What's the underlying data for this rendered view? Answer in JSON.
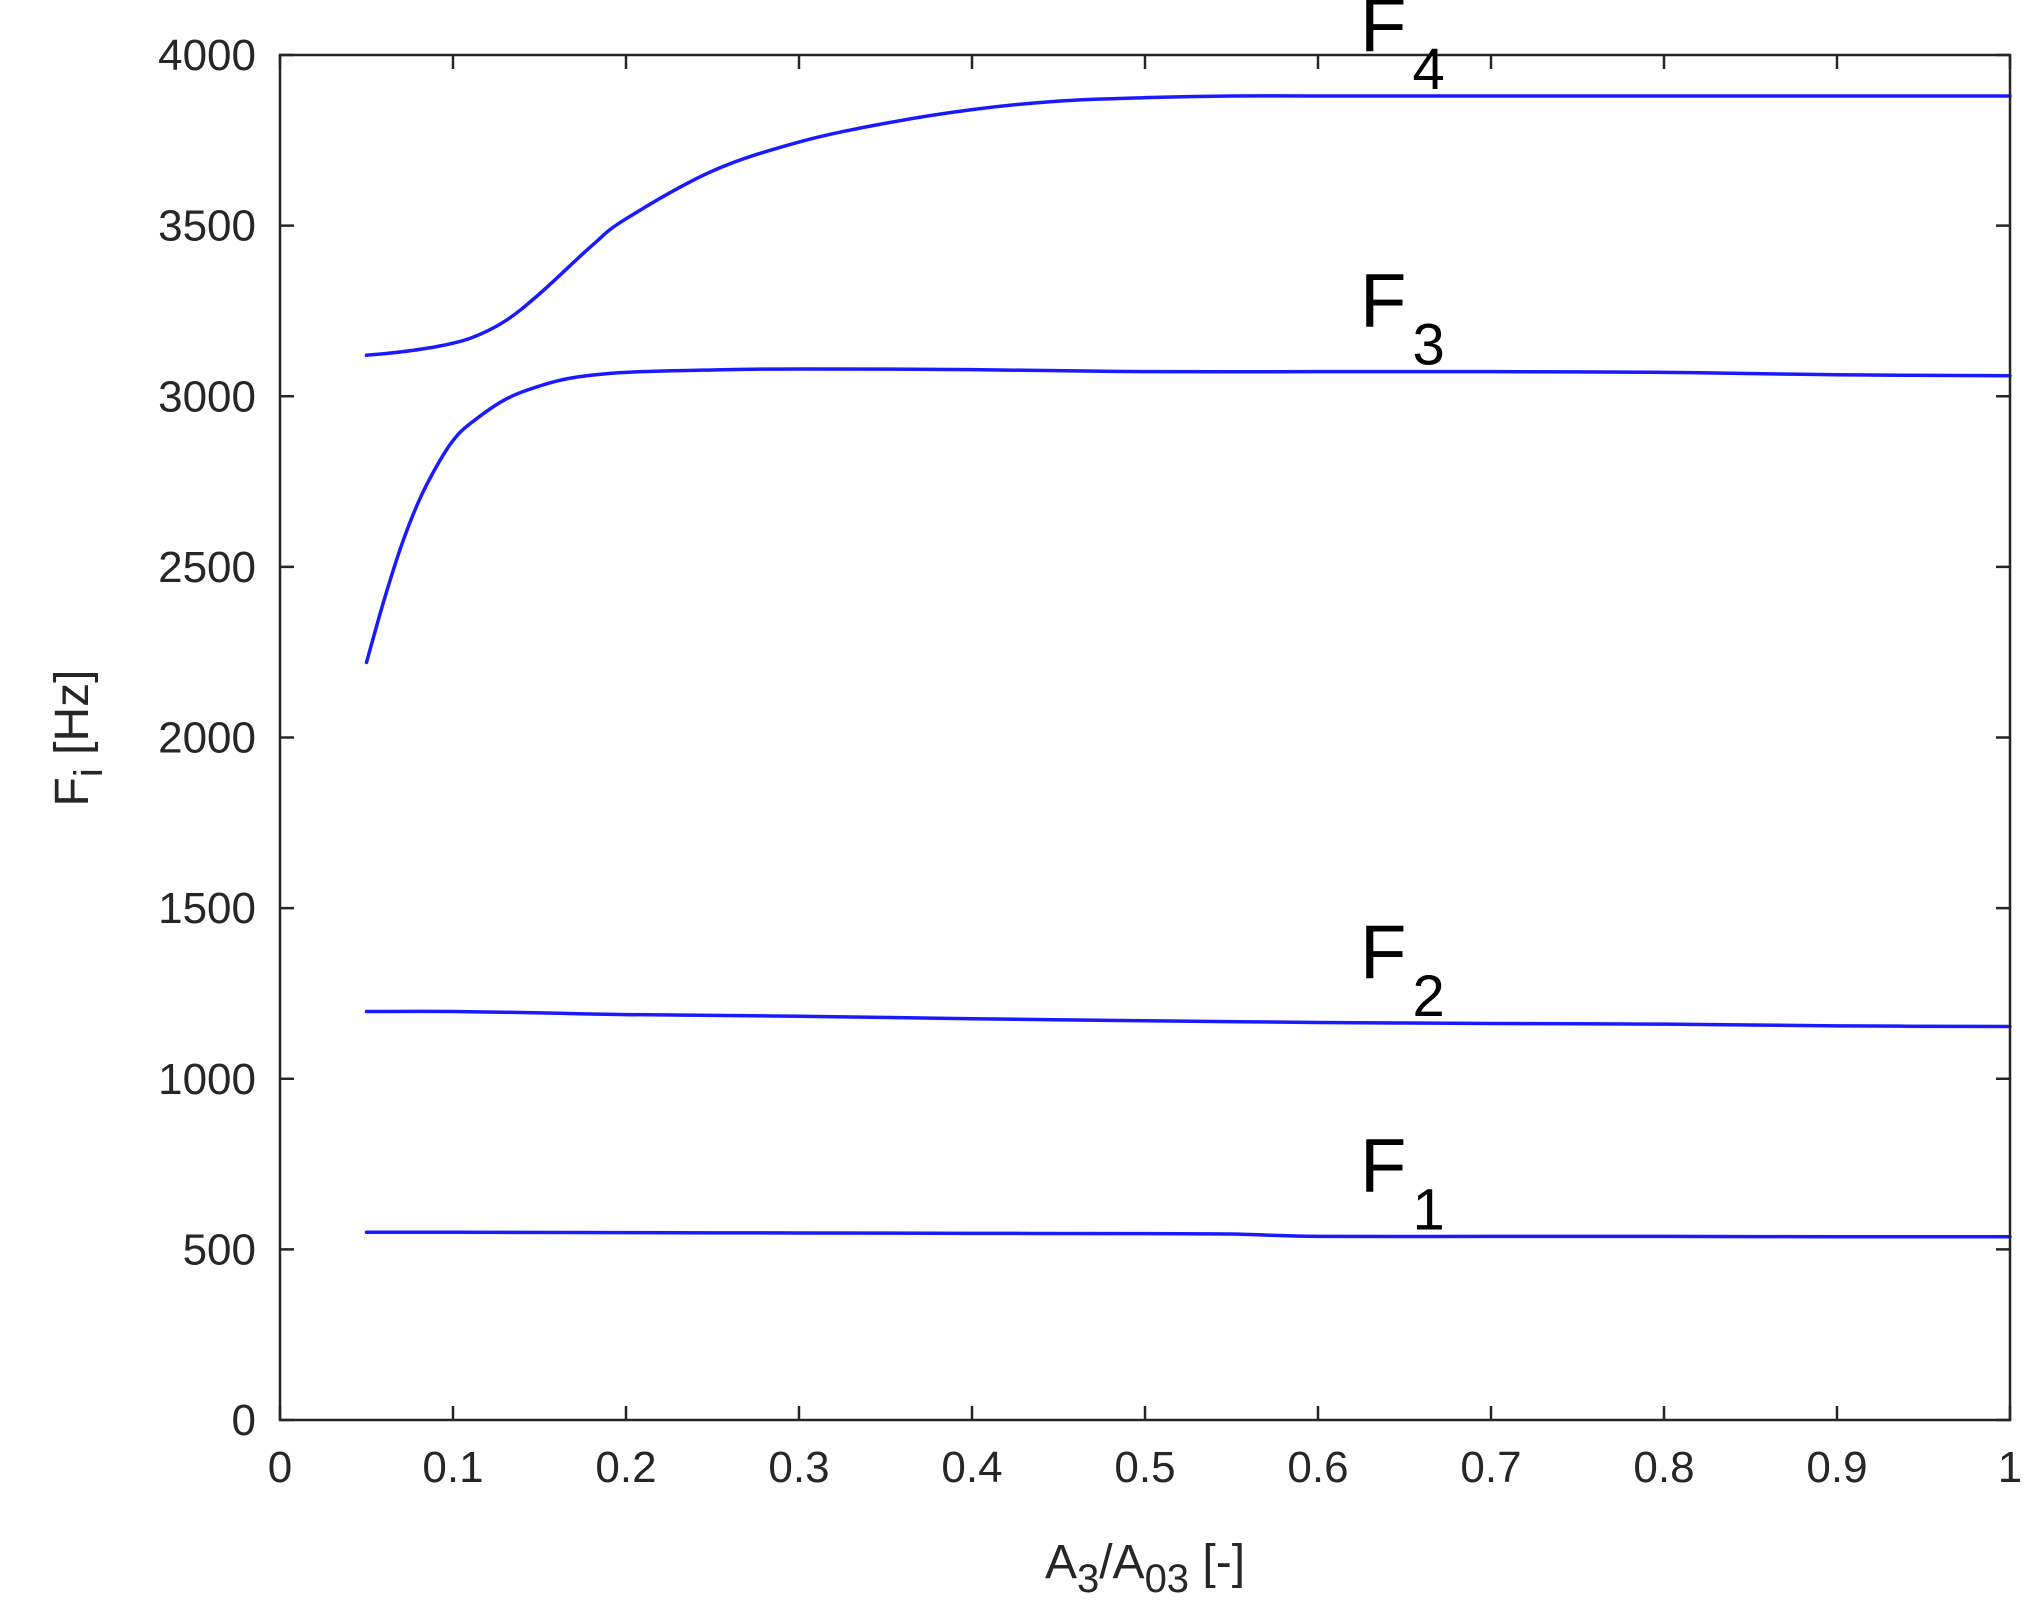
{
  "chart_data": {
    "type": "line",
    "title": "",
    "xlabel": {
      "main": "A",
      "sub1": "3",
      "mid": "/A",
      "sub2": "03",
      "tail": " [-]"
    },
    "ylabel": {
      "main": "F",
      "sub": "i",
      "tail": " [Hz]"
    },
    "xlim": [
      0,
      1
    ],
    "ylim": [
      0,
      4000
    ],
    "xticks": [
      0,
      0.1,
      0.2,
      0.3,
      0.4,
      0.5,
      0.6,
      0.7,
      0.8,
      0.9,
      1
    ],
    "xtick_labels": [
      "0",
      "0.1",
      "0.2",
      "0.3",
      "0.4",
      "0.5",
      "0.6",
      "0.7",
      "0.8",
      "0.9",
      "1"
    ],
    "yticks": [
      0,
      500,
      1000,
      1500,
      2000,
      2500,
      3000,
      3500,
      4000
    ],
    "ytick_labels": [
      "0",
      "500",
      "1000",
      "1500",
      "2000",
      "2500",
      "3000",
      "3500",
      "4000"
    ],
    "grid": false,
    "line_color": "#1a1aff",
    "series": [
      {
        "name": "F1",
        "label_main": "F",
        "label_sub": "1",
        "x": [
          0.05,
          0.1,
          0.2,
          0.3,
          0.4,
          0.5,
          0.55,
          0.6,
          0.7,
          0.8,
          0.9,
          1.0
        ],
        "y": [
          550,
          550,
          549,
          548,
          547,
          546,
          545,
          538,
          538,
          538,
          537,
          537
        ]
      },
      {
        "name": "F2",
        "label_main": "F",
        "label_sub": "2",
        "x": [
          0.05,
          0.1,
          0.15,
          0.2,
          0.3,
          0.4,
          0.5,
          0.6,
          0.7,
          0.8,
          0.9,
          1.0
        ],
        "y": [
          1197,
          1197,
          1193,
          1188,
          1183,
          1176,
          1170,
          1165,
          1162,
          1160,
          1155,
          1153
        ]
      },
      {
        "name": "F3",
        "label_main": "F",
        "label_sub": "3",
        "x": [
          0.05,
          0.06,
          0.07,
          0.08,
          0.09,
          0.1,
          0.11,
          0.13,
          0.15,
          0.17,
          0.2,
          0.25,
          0.3,
          0.4,
          0.5,
          0.6,
          0.7,
          0.8,
          0.9,
          1.0
        ],
        "y": [
          2220,
          2400,
          2560,
          2690,
          2790,
          2870,
          2920,
          2990,
          3030,
          3055,
          3070,
          3077,
          3080,
          3078,
          3072,
          3072,
          3072,
          3070,
          3063,
          3060
        ]
      },
      {
        "name": "F4",
        "label_main": "F",
        "label_sub": "4",
        "x": [
          0.05,
          0.07,
          0.09,
          0.11,
          0.13,
          0.15,
          0.18,
          0.2,
          0.25,
          0.3,
          0.35,
          0.4,
          0.45,
          0.5,
          0.55,
          0.6,
          0.7,
          0.8,
          0.9,
          1.0
        ],
        "y": [
          3120,
          3130,
          3145,
          3170,
          3220,
          3300,
          3440,
          3520,
          3660,
          3745,
          3800,
          3840,
          3865,
          3875,
          3880,
          3880,
          3880,
          3880,
          3880,
          3880
        ]
      }
    ]
  }
}
